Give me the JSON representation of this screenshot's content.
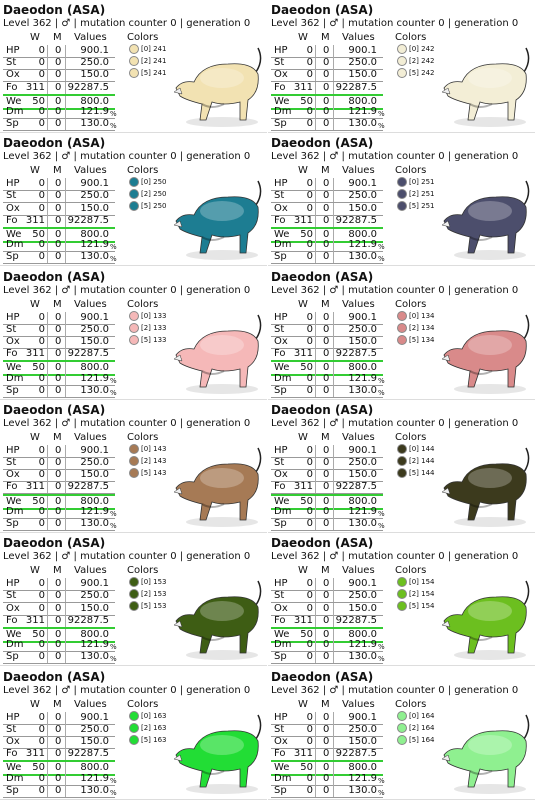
{
  "cards": [
    {
      "title": "Daeodon (ASA)",
      "subtitle": "Level 362 | ♂ | mutation counter 0 | generation 0",
      "headers": [
        "W",
        "M",
        "Values"
      ],
      "colors_heading": "Colors",
      "stats": [
        {
          "stat": "HP",
          "w": "0",
          "m": "0",
          "value": "900.1"
        },
        {
          "stat": "St",
          "w": "0",
          "m": "0",
          "value": "250.0"
        },
        {
          "stat": "Ox",
          "w": "0",
          "m": "0",
          "value": "150.0"
        },
        {
          "stat": "Fo",
          "w": "311",
          "m": "0",
          "value": "92287.5"
        },
        {
          "stat": "We",
          "w": "50",
          "m": "0",
          "value": "800.0"
        },
        {
          "stat": "Dm",
          "w": "0",
          "m": "0",
          "value": "121.9",
          "unit": "%"
        },
        {
          "stat": "Sp",
          "w": "0",
          "m": "0",
          "value": "130.0",
          "unit": "%"
        }
      ],
      "colors": [
        {
          "label": "[0] 241",
          "hex": "#f2e2b2"
        },
        {
          "label": "[2] 241",
          "hex": "#f2e2b2"
        },
        {
          "label": "[5] 241",
          "hex": "#f2e2b2"
        }
      ]
    },
    {
      "title": "Daeodon (ASA)",
      "subtitle": "Level 362 | ♂ | mutation counter 0 | generation 0",
      "headers": [
        "W",
        "M",
        "Values"
      ],
      "colors_heading": "Colors",
      "stats": [
        {
          "stat": "HP",
          "w": "0",
          "m": "0",
          "value": "900.1"
        },
        {
          "stat": "St",
          "w": "0",
          "m": "0",
          "value": "250.0"
        },
        {
          "stat": "Ox",
          "w": "0",
          "m": "0",
          "value": "150.0"
        },
        {
          "stat": "Fo",
          "w": "311",
          "m": "0",
          "value": "92287.5"
        },
        {
          "stat": "We",
          "w": "50",
          "m": "0",
          "value": "800.0"
        },
        {
          "stat": "Dm",
          "w": "0",
          "m": "0",
          "value": "121.9",
          "unit": "%"
        },
        {
          "stat": "Sp",
          "w": "0",
          "m": "0",
          "value": "130.0",
          "unit": "%"
        }
      ],
      "colors": [
        {
          "label": "[0] 242",
          "hex": "#f3eed6"
        },
        {
          "label": "[2] 242",
          "hex": "#f3eed6"
        },
        {
          "label": "[5] 242",
          "hex": "#f3eed6"
        }
      ]
    },
    {
      "title": "Daeodon (ASA)",
      "subtitle": "Level 362 | ♂ | mutation counter 0 | generation 0",
      "headers": [
        "W",
        "M",
        "Values"
      ],
      "colors_heading": "Colors",
      "stats": [
        {
          "stat": "HP",
          "w": "0",
          "m": "0",
          "value": "900.1"
        },
        {
          "stat": "St",
          "w": "0",
          "m": "0",
          "value": "250.0"
        },
        {
          "stat": "Ox",
          "w": "0",
          "m": "0",
          "value": "150.0"
        },
        {
          "stat": "Fo",
          "w": "311",
          "m": "0",
          "value": "92287.5"
        },
        {
          "stat": "We",
          "w": "50",
          "m": "0",
          "value": "800.0"
        },
        {
          "stat": "Dm",
          "w": "0",
          "m": "0",
          "value": "121.9",
          "unit": "%"
        },
        {
          "stat": "Sp",
          "w": "0",
          "m": "0",
          "value": "130.0",
          "unit": "%"
        }
      ],
      "colors": [
        {
          "label": "[0] 250",
          "hex": "#1d7d92"
        },
        {
          "label": "[2] 250",
          "hex": "#1d7d92"
        },
        {
          "label": "[5] 250",
          "hex": "#1d7d92"
        }
      ]
    },
    {
      "title": "Daeodon (ASA)",
      "subtitle": "Level 362 | ♂ | mutation counter 0 | generation 0",
      "headers": [
        "W",
        "M",
        "Values"
      ],
      "colors_heading": "Colors",
      "stats": [
        {
          "stat": "HP",
          "w": "0",
          "m": "0",
          "value": "900.1"
        },
        {
          "stat": "St",
          "w": "0",
          "m": "0",
          "value": "250.0"
        },
        {
          "stat": "Ox",
          "w": "0",
          "m": "0",
          "value": "150.0"
        },
        {
          "stat": "Fo",
          "w": "311",
          "m": "0",
          "value": "92287.5"
        },
        {
          "stat": "We",
          "w": "50",
          "m": "0",
          "value": "800.0"
        },
        {
          "stat": "Dm",
          "w": "0",
          "m": "0",
          "value": "121.9",
          "unit": "%"
        },
        {
          "stat": "Sp",
          "w": "0",
          "m": "0",
          "value": "130.0",
          "unit": "%"
        }
      ],
      "colors": [
        {
          "label": "[0] 251",
          "hex": "#4c4e6c"
        },
        {
          "label": "[2] 251",
          "hex": "#4c4e6c"
        },
        {
          "label": "[5] 251",
          "hex": "#4c4e6c"
        }
      ]
    },
    {
      "title": "Daeodon (ASA)",
      "subtitle": "Level 362 | ♂ | mutation counter 0 | generation 0",
      "headers": [
        "W",
        "M",
        "Values"
      ],
      "colors_heading": "Colors",
      "stats": [
        {
          "stat": "HP",
          "w": "0",
          "m": "0",
          "value": "900.1"
        },
        {
          "stat": "St",
          "w": "0",
          "m": "0",
          "value": "250.0"
        },
        {
          "stat": "Ox",
          "w": "0",
          "m": "0",
          "value": "150.0"
        },
        {
          "stat": "Fo",
          "w": "311",
          "m": "0",
          "value": "92287.5"
        },
        {
          "stat": "We",
          "w": "50",
          "m": "0",
          "value": "800.0"
        },
        {
          "stat": "Dm",
          "w": "0",
          "m": "0",
          "value": "121.9",
          "unit": "%"
        },
        {
          "stat": "Sp",
          "w": "0",
          "m": "0",
          "value": "130.0",
          "unit": "%"
        }
      ],
      "colors": [
        {
          "label": "[0] 133",
          "hex": "#f5b8b8"
        },
        {
          "label": "[2] 133",
          "hex": "#f5b8b8"
        },
        {
          "label": "[5] 133",
          "hex": "#f5b8b8"
        }
      ]
    },
    {
      "title": "Daeodon (ASA)",
      "subtitle": "Level 362 | ♂ | mutation counter 0 | generation 0",
      "headers": [
        "W",
        "M",
        "Values"
      ],
      "colors_heading": "Colors",
      "stats": [
        {
          "stat": "HP",
          "w": "0",
          "m": "0",
          "value": "900.1"
        },
        {
          "stat": "St",
          "w": "0",
          "m": "0",
          "value": "250.0"
        },
        {
          "stat": "Ox",
          "w": "0",
          "m": "0",
          "value": "150.0"
        },
        {
          "stat": "Fo",
          "w": "311",
          "m": "0",
          "value": "92287.5"
        },
        {
          "stat": "We",
          "w": "50",
          "m": "0",
          "value": "800.0"
        },
        {
          "stat": "Dm",
          "w": "0",
          "m": "0",
          "value": "121.9",
          "unit": "%"
        },
        {
          "stat": "Sp",
          "w": "0",
          "m": "0",
          "value": "130.0",
          "unit": "%"
        }
      ],
      "colors": [
        {
          "label": "[0] 134",
          "hex": "#d98a8a"
        },
        {
          "label": "[2] 134",
          "hex": "#d98a8a"
        },
        {
          "label": "[5] 134",
          "hex": "#d98a8a"
        }
      ]
    },
    {
      "title": "Daeodon (ASA)",
      "subtitle": "Level 362 | ♂ | mutation counter 0 | generation 0",
      "headers": [
        "W",
        "M",
        "Values"
      ],
      "colors_heading": "Colors",
      "stats": [
        {
          "stat": "HP",
          "w": "0",
          "m": "0",
          "value": "900.1"
        },
        {
          "stat": "St",
          "w": "0",
          "m": "0",
          "value": "250.0"
        },
        {
          "stat": "Ox",
          "w": "0",
          "m": "0",
          "value": "150.0"
        },
        {
          "stat": "Fo",
          "w": "311",
          "m": "0",
          "value": "92287.5"
        },
        {
          "stat": "We",
          "w": "50",
          "m": "0",
          "value": "800.0"
        },
        {
          "stat": "Dm",
          "w": "0",
          "m": "0",
          "value": "121.9",
          "unit": "%"
        },
        {
          "stat": "Sp",
          "w": "0",
          "m": "0",
          "value": "130.0",
          "unit": "%"
        }
      ],
      "colors": [
        {
          "label": "[0] 143",
          "hex": "#a67a55"
        },
        {
          "label": "[2] 143",
          "hex": "#a67a55"
        },
        {
          "label": "[5] 143",
          "hex": "#a67a55"
        }
      ]
    },
    {
      "title": "Daeodon (ASA)",
      "subtitle": "Level 362 | ♂ | mutation counter 0 | generation 0",
      "headers": [
        "W",
        "M",
        "Values"
      ],
      "colors_heading": "Colors",
      "stats": [
        {
          "stat": "HP",
          "w": "0",
          "m": "0",
          "value": "900.1"
        },
        {
          "stat": "St",
          "w": "0",
          "m": "0",
          "value": "250.0"
        },
        {
          "stat": "Ox",
          "w": "0",
          "m": "0",
          "value": "150.0"
        },
        {
          "stat": "Fo",
          "w": "311",
          "m": "0",
          "value": "92287.5"
        },
        {
          "stat": "We",
          "w": "50",
          "m": "0",
          "value": "800.0"
        },
        {
          "stat": "Dm",
          "w": "0",
          "m": "0",
          "value": "121.9",
          "unit": "%"
        },
        {
          "stat": "Sp",
          "w": "0",
          "m": "0",
          "value": "130.0",
          "unit": "%"
        }
      ],
      "colors": [
        {
          "label": "[0] 144",
          "hex": "#3c3a1d"
        },
        {
          "label": "[2] 144",
          "hex": "#3c3a1d"
        },
        {
          "label": "[5] 144",
          "hex": "#3c3a1d"
        }
      ]
    },
    {
      "title": "Daeodon (ASA)",
      "subtitle": "Level 362 | ♂ | mutation counter 0 | generation 0",
      "headers": [
        "W",
        "M",
        "Values"
      ],
      "colors_heading": "Colors",
      "stats": [
        {
          "stat": "HP",
          "w": "0",
          "m": "0",
          "value": "900.1"
        },
        {
          "stat": "St",
          "w": "0",
          "m": "0",
          "value": "250.0"
        },
        {
          "stat": "Ox",
          "w": "0",
          "m": "0",
          "value": "150.0"
        },
        {
          "stat": "Fo",
          "w": "311",
          "m": "0",
          "value": "92287.5"
        },
        {
          "stat": "We",
          "w": "50",
          "m": "0",
          "value": "800.0"
        },
        {
          "stat": "Dm",
          "w": "0",
          "m": "0",
          "value": "121.9",
          "unit": "%"
        },
        {
          "stat": "Sp",
          "w": "0",
          "m": "0",
          "value": "130.0",
          "unit": "%"
        }
      ],
      "colors": [
        {
          "label": "[0] 153",
          "hex": "#3e5d14"
        },
        {
          "label": "[2] 153",
          "hex": "#3e5d14"
        },
        {
          "label": "[5] 153",
          "hex": "#3e5d14"
        }
      ]
    },
    {
      "title": "Daeodon (ASA)",
      "subtitle": "Level 362 | ♂ | mutation counter 0 | generation 0",
      "headers": [
        "W",
        "M",
        "Values"
      ],
      "colors_heading": "Colors",
      "stats": [
        {
          "stat": "HP",
          "w": "0",
          "m": "0",
          "value": "900.1"
        },
        {
          "stat": "St",
          "w": "0",
          "m": "0",
          "value": "250.0"
        },
        {
          "stat": "Ox",
          "w": "0",
          "m": "0",
          "value": "150.0"
        },
        {
          "stat": "Fo",
          "w": "311",
          "m": "0",
          "value": "92287.5"
        },
        {
          "stat": "We",
          "w": "50",
          "m": "0",
          "value": "800.0"
        },
        {
          "stat": "Dm",
          "w": "0",
          "m": "0",
          "value": "121.9",
          "unit": "%"
        },
        {
          "stat": "Sp",
          "w": "0",
          "m": "0",
          "value": "130.0",
          "unit": "%"
        }
      ],
      "colors": [
        {
          "label": "[0] 154",
          "hex": "#6cbf1f"
        },
        {
          "label": "[2] 154",
          "hex": "#6cbf1f"
        },
        {
          "label": "[5] 154",
          "hex": "#6cbf1f"
        }
      ]
    },
    {
      "title": "Daeodon (ASA)",
      "subtitle": "Level 362 | ♂ | mutation counter 0 | generation 0",
      "headers": [
        "W",
        "M",
        "Values"
      ],
      "colors_heading": "Colors",
      "stats": [
        {
          "stat": "HP",
          "w": "0",
          "m": "0",
          "value": "900.1"
        },
        {
          "stat": "St",
          "w": "0",
          "m": "0",
          "value": "250.0"
        },
        {
          "stat": "Ox",
          "w": "0",
          "m": "0",
          "value": "150.0"
        },
        {
          "stat": "Fo",
          "w": "311",
          "m": "0",
          "value": "92287.5"
        },
        {
          "stat": "We",
          "w": "50",
          "m": "0",
          "value": "800.0"
        },
        {
          "stat": "Dm",
          "w": "0",
          "m": "0",
          "value": "121.9",
          "unit": "%"
        },
        {
          "stat": "Sp",
          "w": "0",
          "m": "0",
          "value": "130.0",
          "unit": "%"
        }
      ],
      "colors": [
        {
          "label": "[0] 163",
          "hex": "#22dd35"
        },
        {
          "label": "[2] 163",
          "hex": "#22dd35"
        },
        {
          "label": "[5] 163",
          "hex": "#22dd35"
        }
      ]
    },
    {
      "title": "Daeodon (ASA)",
      "subtitle": "Level 362 | ♂ | mutation counter 0 | generation 0",
      "headers": [
        "W",
        "M",
        "Values"
      ],
      "colors_heading": "Colors",
      "stats": [
        {
          "stat": "HP",
          "w": "0",
          "m": "0",
          "value": "900.1"
        },
        {
          "stat": "St",
          "w": "0",
          "m": "0",
          "value": "250.0"
        },
        {
          "stat": "Ox",
          "w": "0",
          "m": "0",
          "value": "150.0"
        },
        {
          "stat": "Fo",
          "w": "311",
          "m": "0",
          "value": "92287.5"
        },
        {
          "stat": "We",
          "w": "50",
          "m": "0",
          "value": "800.0"
        },
        {
          "stat": "Dm",
          "w": "0",
          "m": "0",
          "value": "121.9",
          "unit": "%"
        },
        {
          "stat": "Sp",
          "w": "0",
          "m": "0",
          "value": "130.0",
          "unit": "%"
        }
      ],
      "colors": [
        {
          "label": "[0] 164",
          "hex": "#8ff090"
        },
        {
          "label": "[2] 164",
          "hex": "#8ff090"
        },
        {
          "label": "[5] 164",
          "hex": "#8ff090"
        }
      ]
    }
  ]
}
